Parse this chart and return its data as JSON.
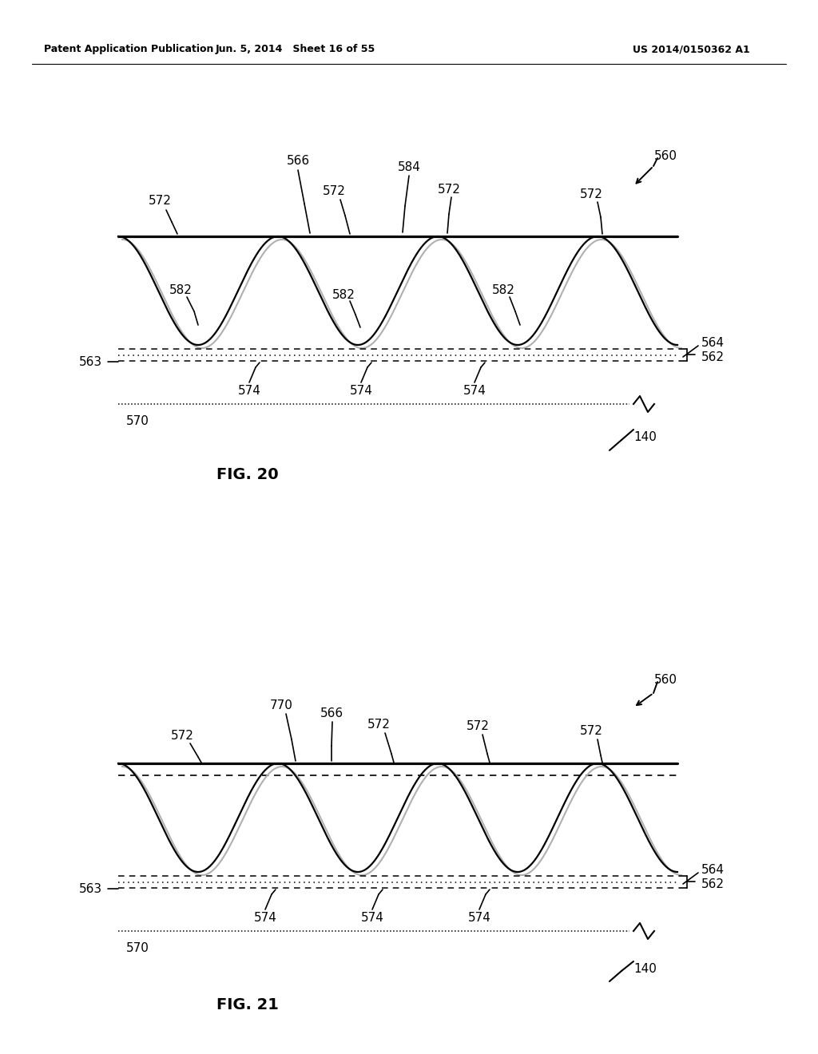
{
  "bg_color": "#ffffff",
  "header_left": "Patent Application Publication",
  "header_mid": "Jun. 5, 2014   Sheet 16 of 55",
  "header_right": "US 2014/0150362 A1",
  "fig20_title": "FIG. 20",
  "fig21_title": "FIG. 21",
  "page_width": 10.24,
  "page_height": 13.2
}
